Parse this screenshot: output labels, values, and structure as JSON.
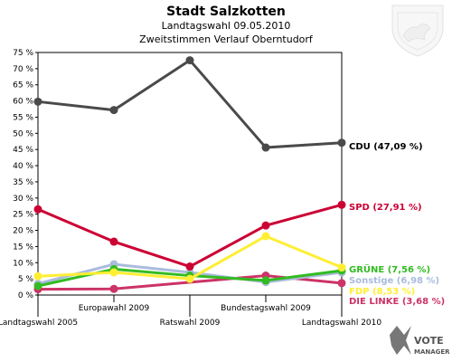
{
  "chart_data": {
    "type": "line",
    "title": "Stadt Salzkotten",
    "subtitle": "Landtagswahl 09.05.2010",
    "subtitle2": "Zweitstimmen Verlauf Oberntudorf",
    "categories": [
      "Landtagswahl 2005",
      "Europawahl 2009",
      "Ratswahl 2009",
      "Bundestagswahl 2009",
      "Landtagswahl 2010"
    ],
    "ylim": [
      0,
      75
    ],
    "yticks": [
      "0 %",
      "5 %",
      "10 %",
      "15 %",
      "20 %",
      "25 %",
      "30 %",
      "35 %",
      "40 %",
      "45 %",
      "50 %",
      "55 %",
      "60 %",
      "65 %",
      "70 %",
      "75 %"
    ],
    "grid": false,
    "series": [
      {
        "name": "CDU",
        "label": "CDU (47,09 %)",
        "color": "#4a4a4a",
        "values": [
          59.8,
          57.2,
          72.6,
          45.6,
          47.09
        ]
      },
      {
        "name": "SPD",
        "label": "SPD (27,91 %)",
        "color": "#cc0033",
        "values": [
          26.5,
          16.5,
          8.8,
          21.5,
          27.91
        ]
      },
      {
        "name": "FDP",
        "label": "FDP (8,53 %)",
        "color": "#ffee33",
        "values": [
          5.8,
          7.0,
          5.0,
          18.2,
          8.53
        ]
      },
      {
        "name": "GRÜNE",
        "label": "GRÜNE (7,56 %)",
        "color": "#33bb22",
        "values": [
          2.8,
          8.0,
          6.0,
          4.5,
          7.56
        ]
      },
      {
        "name": "Sonstige",
        "label": "Sonstige (6,98 %)",
        "color": "#aabbdd",
        "values": [
          3.5,
          9.5,
          7.0,
          4.0,
          6.98
        ]
      },
      {
        "name": "DIE LINKE",
        "label": "DIE LINKE (3,68 %)",
        "color": "#cc3366",
        "values": [
          1.8,
          1.9,
          null,
          6.0,
          3.68
        ]
      }
    ]
  },
  "logo": {
    "name": "votemanager-logo",
    "text_top": "VOTE",
    "text_bottom": "MANAGER"
  },
  "crest": {
    "name": "coat-of-arms-icon"
  }
}
